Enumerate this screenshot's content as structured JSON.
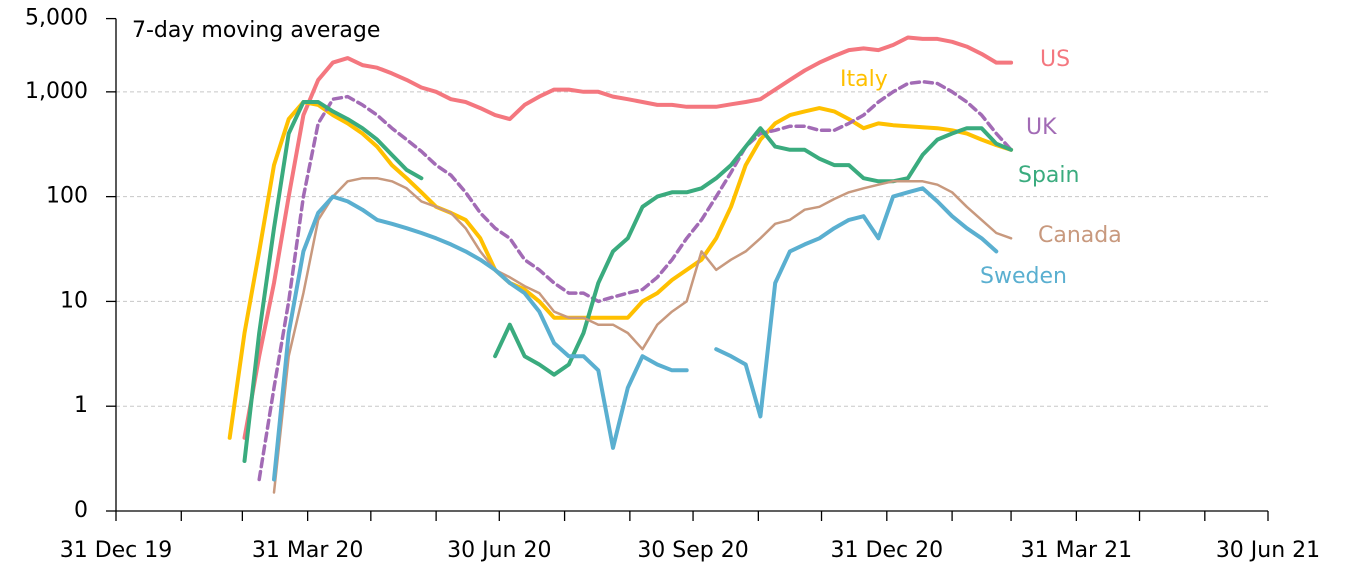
{
  "chart_data": {
    "type": "line",
    "annotation": "7-day moving average",
    "log_y": true,
    "grid": true,
    "x": [
      "2020-02-23",
      "2020-03-01",
      "2020-03-08",
      "2020-03-15",
      "2020-03-22",
      "2020-03-29",
      "2020-04-05",
      "2020-04-12",
      "2020-04-19",
      "2020-04-26",
      "2020-05-03",
      "2020-05-10",
      "2020-05-17",
      "2020-05-24",
      "2020-05-31",
      "2020-06-07",
      "2020-06-14",
      "2020-06-21",
      "2020-06-28",
      "2020-07-05",
      "2020-07-12",
      "2020-07-19",
      "2020-07-26",
      "2020-08-02",
      "2020-08-09",
      "2020-08-16",
      "2020-08-23",
      "2020-08-30",
      "2020-09-06",
      "2020-09-13",
      "2020-09-20",
      "2020-09-27",
      "2020-10-04",
      "2020-10-11",
      "2020-10-18",
      "2020-10-25",
      "2020-11-01",
      "2020-11-08",
      "2020-11-15",
      "2020-11-22",
      "2020-11-29",
      "2020-12-06",
      "2020-12-13",
      "2020-12-20",
      "2020-12-27",
      "2021-01-03",
      "2021-01-10",
      "2021-01-17",
      "2021-01-24",
      "2021-01-31",
      "2021-02-07",
      "2021-02-14",
      "2021-02-21",
      "2021-02-28"
    ],
    "series": [
      {
        "name": "US",
        "color": "#f4777f",
        "dashed": false,
        "values": [
          null,
          0.5,
          3,
          15,
          100,
          600,
          1300,
          1900,
          2100,
          1800,
          1700,
          1500,
          1300,
          1100,
          1000,
          850,
          800,
          700,
          600,
          550,
          750,
          900,
          1050,
          1050,
          1000,
          1000,
          900,
          850,
          800,
          750,
          750,
          720,
          720,
          720,
          760,
          800,
          850,
          1050,
          1300,
          1600,
          1900,
          2200,
          2500,
          2600,
          2500,
          2800,
          3300,
          3200,
          3200,
          3000,
          2700,
          2300,
          1900,
          1900
        ]
      },
      {
        "name": "Italy",
        "color": "#ffc000",
        "dashed": false,
        "values": [
          0.5,
          5,
          30,
          200,
          550,
          800,
          750,
          600,
          500,
          400,
          300,
          200,
          150,
          110,
          80,
          70,
          60,
          40,
          20,
          15,
          13,
          10,
          7,
          7,
          7,
          7,
          7,
          7,
          10,
          12,
          16,
          20,
          25,
          40,
          80,
          200,
          350,
          500,
          600,
          650,
          700,
          650,
          550,
          450,
          500,
          480,
          470,
          460,
          450,
          430,
          400,
          350,
          310,
          280
        ]
      },
      {
        "name": "UK",
        "color": "#a26bb5",
        "dashed": true,
        "values": [
          null,
          null,
          0.2,
          1.5,
          10,
          100,
          500,
          850,
          900,
          750,
          600,
          450,
          350,
          270,
          200,
          160,
          110,
          70,
          50,
          40,
          25,
          20,
          15,
          12,
          12,
          10,
          11,
          12,
          13,
          17,
          25,
          40,
          60,
          100,
          170,
          300,
          400,
          430,
          470,
          470,
          430,
          430,
          500,
          600,
          800,
          1000,
          1200,
          1250,
          1200,
          1000,
          800,
          600,
          400,
          280
        ]
      },
      {
        "name": "Spain",
        "color": "#3aab7e",
        "dashed": false,
        "values": [
          null,
          0.3,
          5,
          50,
          400,
          800,
          800,
          650,
          550,
          450,
          350,
          250,
          180,
          150,
          null,
          null,
          null,
          null,
          3,
          6,
          3,
          2.5,
          2,
          2.5,
          5,
          15,
          30,
          40,
          80,
          100,
          110,
          110,
          120,
          150,
          200,
          300,
          450,
          300,
          280,
          280,
          230,
          200,
          200,
          150,
          140,
          140,
          150,
          250,
          350,
          400,
          450,
          450,
          320,
          280
        ]
      },
      {
        "name": "Canada",
        "color": "#c8997e",
        "dashed": false,
        "values": [
          null,
          null,
          null,
          0.15,
          3,
          12,
          60,
          100,
          140,
          150,
          150,
          140,
          120,
          90,
          80,
          70,
          50,
          30,
          20,
          17,
          14,
          12,
          8,
          7,
          7,
          6,
          6,
          5,
          3.5,
          6,
          8,
          10,
          30,
          20,
          25,
          30,
          40,
          55,
          60,
          75,
          80,
          95,
          110,
          120,
          130,
          140,
          140,
          140,
          130,
          110,
          80,
          60,
          45,
          40
        ]
      },
      {
        "name": "Sweden",
        "color": "#5aafd0",
        "dashed": false,
        "values": [
          null,
          null,
          null,
          0.2,
          5,
          30,
          70,
          100,
          90,
          75,
          60,
          55,
          50,
          45,
          40,
          35,
          30,
          25,
          20,
          15,
          12,
          8,
          4,
          3,
          3,
          2.2,
          0.4,
          1.5,
          3,
          2.5,
          2.2,
          2.2,
          null,
          3.5,
          3,
          2.5,
          0.8,
          15,
          30,
          35,
          40,
          50,
          60,
          65,
          40,
          100,
          110,
          120,
          90,
          65,
          50,
          40,
          30,
          null
        ]
      }
    ],
    "xlim": [
      "2019-12-31",
      "2021-06-30"
    ],
    "xticks": [
      {
        "value": "2019-12-31",
        "label": "31 Dec 19"
      },
      {
        "value": "2020-03-31",
        "label": "31 Mar 20"
      },
      {
        "value": "2020-06-30",
        "label": "30 Jun 20"
      },
      {
        "value": "2020-09-30",
        "label": "30 Sep 20"
      },
      {
        "value": "2020-12-31",
        "label": "31 Dec 20"
      },
      {
        "value": "2021-03-31",
        "label": "31 Mar 21"
      },
      {
        "value": "2021-06-30",
        "label": "30 Jun 21"
      }
    ],
    "xminorticks": [
      "2020-01-31",
      "2020-02-29",
      "2020-04-30",
      "2020-05-31",
      "2020-07-31",
      "2020-08-31",
      "2020-10-31",
      "2020-11-30",
      "2021-01-31",
      "2021-02-28",
      "2021-04-30",
      "2021-05-31"
    ],
    "ylim": [
      0.1,
      5000
    ],
    "yticks": [
      {
        "value": 0.1,
        "label": "0"
      },
      1,
      10,
      100,
      {
        "value": 1000,
        "label": "1,000"
      },
      {
        "value": 5000,
        "label": "5,000"
      }
    ]
  }
}
